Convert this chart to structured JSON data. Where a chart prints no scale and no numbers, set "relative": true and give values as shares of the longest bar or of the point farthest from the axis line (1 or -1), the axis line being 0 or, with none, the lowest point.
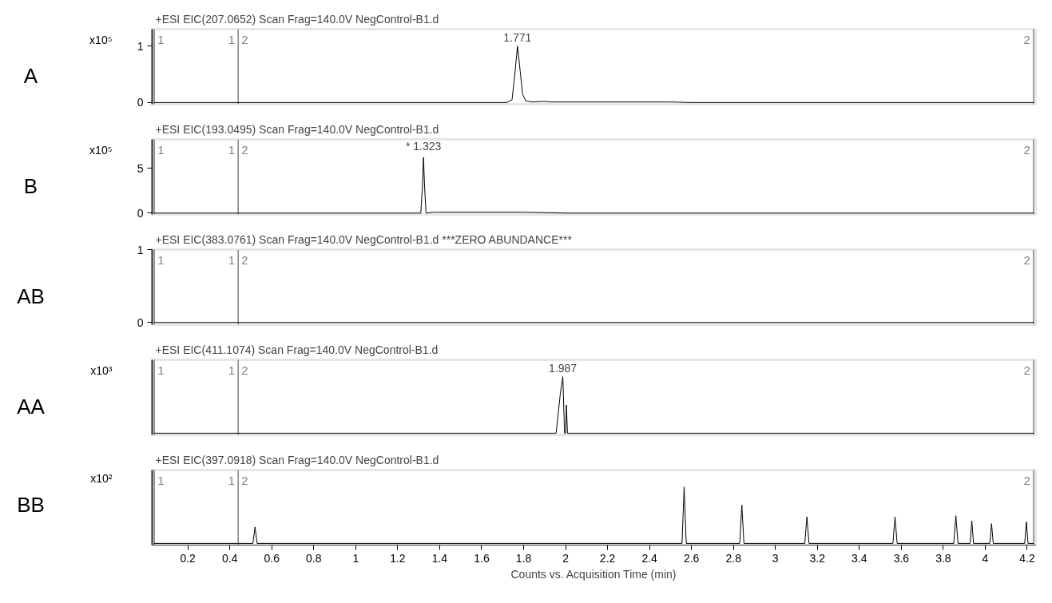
{
  "chart_data": [
    {
      "type": "line",
      "title": "A",
      "subtitle": "+ESI EIC(207.0652) Scan Frag=140.0V NegControl-B1.d",
      "ylabel": "x10⁵",
      "x": [
        0.04,
        1.72,
        1.745,
        1.758,
        1.771,
        1.784,
        1.795,
        1.81,
        1.84,
        1.9,
        1.93,
        2.5,
        2.6,
        4.23
      ],
      "series": [
        {
          "color": "#000000",
          "values": [
            0,
            0,
            0.05,
            0.5,
            1.0,
            0.55,
            0.15,
            0.03,
            0.01,
            0.02,
            0.01,
            0.01,
            0,
            0
          ]
        }
      ],
      "xlim": [
        0.03,
        4.24
      ],
      "ylim": [
        -0.03,
        1.3
      ],
      "yticks": [
        0,
        1
      ],
      "tick_labels": "y",
      "grid": false,
      "marker": "none",
      "line_style": "solid",
      "annotations": [
        {
          "text": "1.771",
          "x": 1.771,
          "y": 1.0
        },
        {
          "text": "1",
          "x": 0.04
        },
        {
          "text": "1",
          "x": 0.44
        },
        {
          "text": "2",
          "x": 0.44
        },
        {
          "text": "2",
          "x": 4.23
        }
      ],
      "ref_lines": [
        {
          "axis": "x",
          "value": 0.04,
          "color": "#808080"
        },
        {
          "axis": "x",
          "value": 0.44,
          "color": "#808080"
        },
        {
          "axis": "x",
          "value": 4.23,
          "color": "#808080"
        }
      ]
    },
    {
      "type": "line",
      "title": "B",
      "subtitle": "+ESI EIC(193.0495) Scan Frag=140.0V NegControl-B1.d",
      "ylabel": "x10⁵",
      "x": [
        0.04,
        1.31,
        1.318,
        1.323,
        1.328,
        1.335,
        1.37,
        1.38,
        1.4,
        1.8,
        2.0,
        4.23
      ],
      "series": [
        {
          "color": "#000000",
          "values": [
            0,
            0,
            3,
            6.2,
            3,
            0,
            0.1,
            0.1,
            0.1,
            0.1,
            0,
            0
          ]
        }
      ],
      "xlim": [
        0.03,
        4.24
      ],
      "ylim": [
        -0.15,
        8.2
      ],
      "yticks": [
        0,
        5
      ],
      "tick_labels": "y",
      "grid": false,
      "marker": "none",
      "line_style": "solid",
      "annotations": [
        {
          "text": "* 1.323",
          "x": 1.323,
          "y": 6.2
        },
        {
          "text": "1",
          "x": 0.04
        },
        {
          "text": "1",
          "x": 0.44
        },
        {
          "text": "2",
          "x": 0.44
        },
        {
          "text": "2",
          "x": 4.23
        }
      ],
      "ref_lines": [
        {
          "axis": "x",
          "value": 0.04,
          "color": "#808080"
        },
        {
          "axis": "x",
          "value": 0.44,
          "color": "#808080"
        },
        {
          "axis": "x",
          "value": 4.23,
          "color": "#808080"
        }
      ]
    },
    {
      "type": "line",
      "title": "AB",
      "subtitle": "+ESI EIC(383.0761) Scan Frag=140.0V NegControl-B1.d    ***ZERO ABUNDANCE***",
      "x": [
        0.04,
        4.23
      ],
      "series": [
        {
          "color": "#000000",
          "values": [
            0,
            0
          ]
        }
      ],
      "xlim": [
        0.03,
        4.24
      ],
      "ylim": [
        -0.03,
        1.0
      ],
      "yticks": [
        0,
        1
      ],
      "tick_labels": "y",
      "grid": false,
      "marker": "none",
      "line_style": "solid",
      "annotations": [
        {
          "text": "1",
          "x": 0.04
        },
        {
          "text": "1",
          "x": 0.44
        },
        {
          "text": "2",
          "x": 0.44
        },
        {
          "text": "2",
          "x": 4.23
        }
      ],
      "ref_lines": [
        {
          "axis": "x",
          "value": 0.04,
          "color": "#808080"
        },
        {
          "axis": "x",
          "value": 0.44,
          "color": "#808080"
        },
        {
          "axis": "x",
          "value": 4.23,
          "color": "#808080"
        }
      ]
    },
    {
      "type": "line",
      "title": "AA",
      "subtitle": "+ESI EIC(411.1074) Scan Frag=140.0V NegControl-B1.d",
      "ylabel": "x10³",
      "relative": true,
      "x": [
        0.04,
        1.955,
        1.975,
        1.987,
        1.995,
        2.0,
        2.004,
        2.009,
        4.23
      ],
      "series": [
        {
          "color": "#000000",
          "values": [
            0,
            0,
            0.7,
            1.0,
            0,
            0,
            0.5,
            0,
            0
          ]
        }
      ],
      "xlim": [
        0.03,
        4.24
      ],
      "tick_labels": false,
      "grid": false,
      "marker": "none",
      "line_style": "solid",
      "annotations": [
        {
          "text": "1.987",
          "x": 1.987,
          "y": 1.0
        },
        {
          "text": "1",
          "x": 0.04
        },
        {
          "text": "1",
          "x": 0.44
        },
        {
          "text": "2",
          "x": 0.44
        },
        {
          "text": "2",
          "x": 4.23
        }
      ],
      "ref_lines": [
        {
          "axis": "x",
          "value": 0.04,
          "color": "#808080"
        },
        {
          "axis": "x",
          "value": 0.44,
          "color": "#808080"
        },
        {
          "axis": "x",
          "value": 4.23,
          "color": "#808080"
        }
      ]
    },
    {
      "type": "line",
      "title": "BB",
      "subtitle": "+ESI EIC(397.0918) Scan Frag=140.0V NegControl-B1.d",
      "ylabel": "x10²",
      "relative": true,
      "xlabel": "Counts vs. Acquisition Time (min)",
      "x": [
        0.04,
        0.51,
        0.52,
        0.53,
        2.555,
        2.565,
        2.575,
        2.83,
        2.84,
        2.85,
        3.14,
        3.15,
        3.16,
        3.56,
        3.57,
        3.58,
        3.85,
        3.86,
        3.87,
        3.928,
        3.936,
        3.944,
        4.022,
        4.03,
        4.038,
        4.188,
        4.196,
        4.204,
        4.23
      ],
      "series": [
        {
          "color": "#000000",
          "values": [
            0,
            0,
            0.29,
            0,
            0,
            1.0,
            0,
            0,
            0.68,
            0,
            0,
            0.47,
            0,
            0,
            0.47,
            0,
            0,
            0.49,
            0,
            0,
            0.4,
            0,
            0,
            0.35,
            0,
            0,
            0.38,
            0,
            0
          ]
        }
      ],
      "xlim": [
        0.03,
        4.24
      ],
      "xticks": [
        0.2,
        0.4,
        0.6,
        0.8,
        1,
        1.2,
        1.4,
        1.6,
        1.8,
        2,
        2.2,
        2.4,
        2.6,
        2.8,
        3,
        3.2,
        3.4,
        3.6,
        3.8,
        4,
        4.2
      ],
      "tick_labels": "x",
      "grid": false,
      "marker": "none",
      "line_style": "solid",
      "annotations": [
        {
          "text": "1",
          "x": 0.04
        },
        {
          "text": "1",
          "x": 0.44
        },
        {
          "text": "2",
          "x": 0.44
        },
        {
          "text": "2",
          "x": 4.23
        }
      ],
      "ref_lines": [
        {
          "axis": "x",
          "value": 0.04,
          "color": "#808080"
        },
        {
          "axis": "x",
          "value": 0.44,
          "color": "#808080"
        },
        {
          "axis": "x",
          "value": 4.23,
          "color": "#808080"
        }
      ]
    }
  ]
}
